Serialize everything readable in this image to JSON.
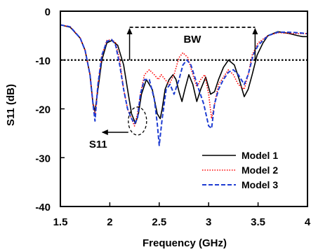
{
  "chart_data": {
    "type": "line",
    "xlabel": "Frequency (GHz)",
    "ylabel": "S11 (dB)",
    "xlim": [
      1.5,
      4
    ],
    "ylim": [
      -40,
      0
    ],
    "xticks": [
      1.5,
      2,
      2.5,
      3,
      3.5,
      4
    ],
    "xtick_labels": [
      "1.5",
      "2",
      "2.5",
      "3",
      "3.5",
      "4"
    ],
    "yticks": [
      0,
      -10,
      -20,
      -30,
      -40
    ],
    "ytick_labels": [
      "0",
      "-10",
      "-20",
      "-30",
      "-40"
    ],
    "grid": false,
    "legend_position": "bottom-right",
    "reference_line": {
      "y": -10,
      "style": "dotted"
    },
    "annotations": {
      "bw_label": "BW",
      "bw_range_ghz": [
        2.2,
        3.47
      ],
      "bw_level_db": -3.3,
      "s11_label": "S11",
      "s11_marker_x": 2.28,
      "s11_marker_y": -22.5
    },
    "series": [
      {
        "name": "Model 1",
        "color": "#000000",
        "dash": "solid",
        "x": [
          1.5,
          1.6,
          1.7,
          1.75,
          1.8,
          1.83,
          1.85,
          1.88,
          1.92,
          1.97,
          2.02,
          2.08,
          2.14,
          2.18,
          2.22,
          2.26,
          2.29,
          2.32,
          2.37,
          2.43,
          2.48,
          2.51,
          2.53,
          2.56,
          2.6,
          2.64,
          2.67,
          2.7,
          2.73,
          2.76,
          2.8,
          2.84,
          2.88,
          2.92,
          2.97,
          3.02,
          3.06,
          3.1,
          3.15,
          3.2,
          3.26,
          3.31,
          3.36,
          3.4,
          3.44,
          3.49,
          3.55,
          3.6,
          3.7,
          3.8,
          3.9,
          3.95,
          4.0
        ],
        "y": [
          -2.8,
          -3.3,
          -5.5,
          -8,
          -13,
          -19,
          -20.5,
          -16,
          -10,
          -6.5,
          -6,
          -7,
          -11,
          -16,
          -21,
          -23,
          -21,
          -17,
          -14,
          -16,
          -21,
          -22,
          -20,
          -16,
          -14,
          -13,
          -14,
          -16.5,
          -18.5,
          -16,
          -13,
          -15,
          -18.5,
          -16,
          -13.5,
          -17,
          -16.5,
          -14,
          -11.5,
          -10,
          -11,
          -14,
          -17.5,
          -16,
          -13,
          -9,
          -6.5,
          -5,
          -4.2,
          -4.5,
          -5,
          -5.2,
          -5.2
        ]
      },
      {
        "name": "Model 2",
        "color": "#ff0000",
        "dash": "dotted",
        "x": [
          1.5,
          1.6,
          1.7,
          1.75,
          1.8,
          1.83,
          1.85,
          1.88,
          1.92,
          1.97,
          2.02,
          2.06,
          2.1,
          2.14,
          2.18,
          2.22,
          2.25,
          2.28,
          2.31,
          2.35,
          2.4,
          2.45,
          2.49,
          2.52,
          2.56,
          2.6,
          2.65,
          2.7,
          2.74,
          2.79,
          2.84,
          2.88,
          2.92,
          2.96,
          3.0,
          3.03,
          3.06,
          3.1,
          3.15,
          3.2,
          3.25,
          3.3,
          3.36,
          3.4,
          3.44,
          3.5,
          3.6,
          3.7,
          3.8,
          3.9,
          3.95,
          4.0
        ],
        "y": [
          -2.8,
          -3.2,
          -5.5,
          -8,
          -13,
          -19,
          -21.5,
          -15,
          -9,
          -6,
          -5.8,
          -6.5,
          -10,
          -16,
          -20,
          -22,
          -23.5,
          -21,
          -17,
          -13,
          -12,
          -13,
          -14,
          -13,
          -14,
          -15,
          -13,
          -9.5,
          -8.5,
          -9.5,
          -13,
          -15.5,
          -14,
          -13,
          -17,
          -22,
          -19,
          -15,
          -13.5,
          -12,
          -13,
          -15,
          -16,
          -13,
          -9,
          -6.5,
          -5,
          -4.4,
          -4.5,
          -4.6,
          -4.6,
          -4.6
        ]
      },
      {
        "name": "Model 3",
        "color": "#1e3cd2",
        "dash": "dashed",
        "x": [
          1.5,
          1.6,
          1.7,
          1.75,
          1.8,
          1.83,
          1.85,
          1.88,
          1.92,
          1.97,
          2.02,
          2.06,
          2.1,
          2.14,
          2.18,
          2.22,
          2.25,
          2.28,
          2.31,
          2.35,
          2.4,
          2.45,
          2.48,
          2.5,
          2.53,
          2.57,
          2.61,
          2.65,
          2.7,
          2.74,
          2.78,
          2.82,
          2.86,
          2.9,
          2.95,
          3.0,
          3.03,
          3.06,
          3.1,
          3.15,
          3.2,
          3.25,
          3.3,
          3.36,
          3.4,
          3.45,
          3.5,
          3.6,
          3.7,
          3.8,
          3.9,
          3.95,
          4.0
        ],
        "y": [
          -2.8,
          -3.2,
          -5.5,
          -8,
          -13,
          -19,
          -22.5,
          -15,
          -9,
          -6.2,
          -5.8,
          -7,
          -11,
          -16,
          -20,
          -22,
          -23,
          -22,
          -17,
          -14,
          -14,
          -18,
          -23,
          -27.5,
          -22,
          -16,
          -15,
          -17,
          -14,
          -11,
          -10,
          -11,
          -13.5,
          -16,
          -19,
          -23.5,
          -24,
          -19,
          -16,
          -14,
          -12.5,
          -12,
          -13,
          -15,
          -13,
          -9,
          -7,
          -5,
          -4.3,
          -4.3,
          -4.4,
          -4.5,
          -4.6
        ]
      }
    ]
  }
}
